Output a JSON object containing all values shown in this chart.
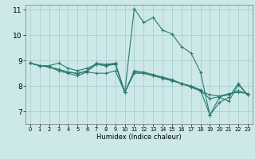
{
  "background_color": "#cce8e8",
  "grid_color": "#aacece",
  "line_color": "#2d7a6e",
  "xlabel": "Humidex (Indice chaleur)",
  "xlim": [
    -0.5,
    23.5
  ],
  "ylim": [
    6.5,
    11.2
  ],
  "yticks": [
    7,
    8,
    9,
    10,
    11
  ],
  "xticks": [
    0,
    1,
    2,
    3,
    4,
    5,
    6,
    7,
    8,
    9,
    10,
    11,
    12,
    13,
    14,
    15,
    16,
    17,
    18,
    19,
    20,
    21,
    22,
    23
  ],
  "lines": [
    {
      "x": [
        0,
        1,
        2,
        3,
        4,
        5,
        6,
        7,
        8,
        9,
        10,
        11,
        12,
        13,
        14,
        15,
        16,
        17,
        18,
        19,
        20,
        21,
        22,
        23
      ],
      "y": [
        8.9,
        8.8,
        8.8,
        8.9,
        8.7,
        8.6,
        8.7,
        8.85,
        8.8,
        8.85,
        7.75,
        11.05,
        10.5,
        10.7,
        10.2,
        10.05,
        9.55,
        9.3,
        8.55,
        6.85,
        7.55,
        7.4,
        8.05,
        7.65
      ]
    },
    {
      "x": [
        0,
        1,
        2,
        3,
        4,
        5,
        6,
        7,
        8,
        9,
        10,
        11,
        12,
        13,
        14,
        15,
        16,
        17,
        18,
        19,
        20,
        21,
        22,
        23
      ],
      "y": [
        8.9,
        8.8,
        8.75,
        8.6,
        8.5,
        8.4,
        8.55,
        8.5,
        8.5,
        8.6,
        7.75,
        8.5,
        8.5,
        8.4,
        8.3,
        8.2,
        8.1,
        7.95,
        7.8,
        7.65,
        7.6,
        7.7,
        7.75,
        7.7
      ]
    },
    {
      "x": [
        0,
        1,
        2,
        3,
        4,
        5,
        6,
        7,
        8,
        9,
        10,
        11,
        12,
        13,
        14,
        15,
        16,
        17,
        18,
        19,
        20,
        21,
        22,
        23
      ],
      "y": [
        8.9,
        8.8,
        8.75,
        8.65,
        8.55,
        8.5,
        8.6,
        8.9,
        8.85,
        8.9,
        7.75,
        8.6,
        8.55,
        8.45,
        8.35,
        8.25,
        8.1,
        8.0,
        7.85,
        6.85,
        7.35,
        7.55,
        8.1,
        7.65
      ]
    },
    {
      "x": [
        0,
        1,
        2,
        3,
        4,
        5,
        6,
        7,
        8,
        9,
        10,
        11,
        12,
        13,
        14,
        15,
        16,
        17,
        18,
        19,
        20,
        21,
        22,
        23
      ],
      "y": [
        8.9,
        8.8,
        8.75,
        8.65,
        8.55,
        8.48,
        8.58,
        8.85,
        8.8,
        8.88,
        7.75,
        8.55,
        8.5,
        8.42,
        8.32,
        8.22,
        8.08,
        7.98,
        7.82,
        7.5,
        7.58,
        7.65,
        7.82,
        7.68
      ]
    }
  ],
  "figsize": [
    3.2,
    2.0
  ],
  "dpi": 100,
  "xlabel_fontsize": 6.0,
  "xtick_fontsize": 4.8,
  "ytick_fontsize": 6.5,
  "linewidth": 0.8,
  "markersize": 2.5,
  "markeredgewidth": 0.8
}
